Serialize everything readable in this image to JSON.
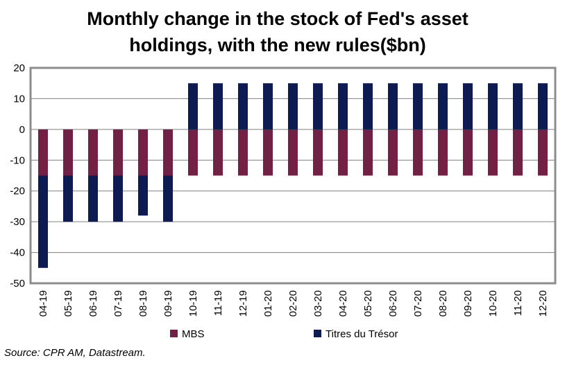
{
  "chart_data": {
    "type": "bar",
    "stacked": true,
    "title_line1": "Monthly change in the stock of Fed's asset",
    "title_line2": "holdings, with the new rules($bn)",
    "categories": [
      "04-19",
      "05-19",
      "06-19",
      "07-19",
      "08-19",
      "09-19",
      "10-19",
      "11-19",
      "12-19",
      "01-20",
      "02-20",
      "03-20",
      "04-20",
      "05-20",
      "06-20",
      "07-20",
      "08-20",
      "09-20",
      "10-20",
      "11-20",
      "12-20"
    ],
    "series": [
      {
        "name": "MBS",
        "color": "#722144",
        "values": [
          -15,
          -15,
          -15,
          -15,
          -15,
          -15,
          -15,
          -15,
          -15,
          -15,
          -15,
          -15,
          -15,
          -15,
          -15,
          -15,
          -15,
          -15,
          -15,
          -15,
          -15
        ]
      },
      {
        "name": "Titres du Trésor",
        "color": "#0e1a52",
        "values": [
          -30,
          -15,
          -15,
          -15,
          -13,
          -15,
          15,
          15,
          15,
          15,
          15,
          15,
          15,
          15,
          15,
          15,
          15,
          15,
          15,
          15,
          15
        ]
      }
    ],
    "ylim": [
      -50,
      20
    ],
    "yticks": [
      "20",
      "10",
      "0",
      "-10",
      "-20",
      "-30",
      "-40",
      "-50"
    ],
    "grid": true,
    "legend_position": "bottom",
    "source": "Source: CPR AM, Datastream."
  }
}
